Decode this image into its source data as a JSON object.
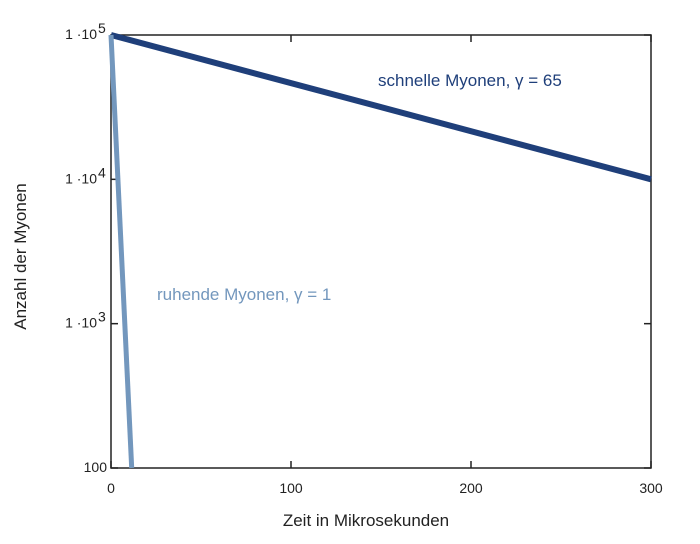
{
  "chart_data": {
    "type": "line",
    "title": "",
    "xlabel": "Zeit in Mikrosekunden",
    "ylabel": "Anzahl der Myonen",
    "xlim": [
      0,
      300
    ],
    "ylim": [
      100,
      100000
    ],
    "yscale": "log",
    "grid": false,
    "x_ticks": [
      {
        "value": 0,
        "label": "0"
      },
      {
        "value": 100,
        "label": "100"
      },
      {
        "value": 200,
        "label": "200"
      },
      {
        "value": 300,
        "label": "300"
      }
    ],
    "y_ticks": [
      {
        "value": 100,
        "base": "100",
        "exp": ""
      },
      {
        "value": 1000,
        "base": "1 ·10",
        "exp": "3"
      },
      {
        "value": 10000,
        "base": "1 ·10",
        "exp": "4"
      },
      {
        "value": 100000,
        "base": "1 ·10",
        "exp": "5"
      }
    ],
    "series": [
      {
        "name": "schnelle Myonen, γ = 65",
        "color": "#1f3f7a",
        "x": [
          0,
          300
        ],
        "y": [
          100000,
          10000
        ]
      },
      {
        "name": "ruhende Myonen, γ = 1",
        "color": "#7397bd",
        "x": [
          0,
          11.5
        ],
        "y": [
          100000,
          100
        ]
      }
    ]
  }
}
